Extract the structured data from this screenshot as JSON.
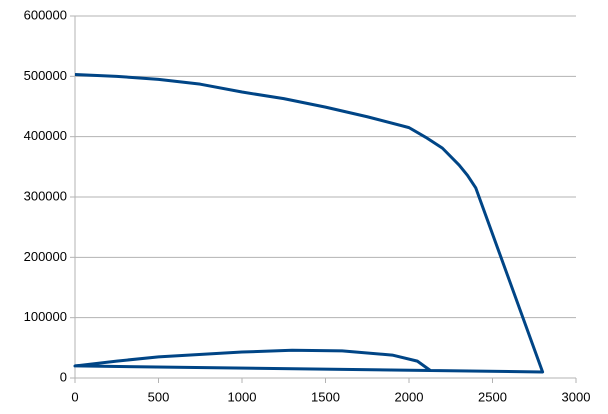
{
  "chart_data": {
    "type": "line",
    "x": [
      0,
      250,
      500,
      750,
      1000,
      1250,
      1500,
      1750,
      2000,
      2100,
      2200,
      2300,
      2350,
      2400,
      2800,
      0,
      250,
      500,
      1000,
      1300,
      1600,
      1900,
      2050,
      2130
    ],
    "series": [
      {
        "color": "#004586",
        "values": [
          503000,
          500000,
          495000,
          487000,
          474000,
          463000,
          449000,
          433000,
          415000,
          399000,
          381000,
          353000,
          336000,
          315000,
          10000,
          20000,
          28000,
          35000,
          43000,
          46000,
          45000,
          38000,
          28000,
          12000
        ]
      }
    ],
    "xlim": [
      0,
      3000
    ],
    "xticks": [
      0,
      500,
      1000,
      1500,
      2000,
      2500,
      3000
    ],
    "ylim": [
      0,
      600000
    ],
    "yticks": [
      0,
      100000,
      200000,
      300000,
      400000,
      500000,
      600000
    ],
    "grid": true
  }
}
